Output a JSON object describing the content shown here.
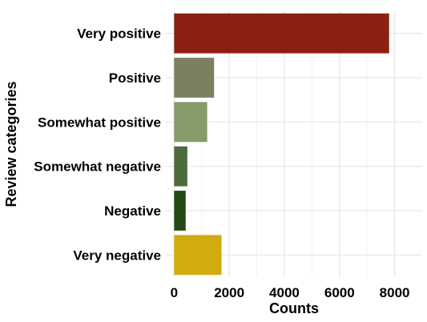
{
  "chart_data": {
    "type": "bar",
    "orientation": "horizontal",
    "categories": [
      "Very positive",
      "Positive",
      "Somewhat positive",
      "Somewhat negative",
      "Negative",
      "Very negative"
    ],
    "values": [
      7800,
      1450,
      1200,
      480,
      420,
      1720
    ],
    "colors": [
      "#8b2012",
      "#7a8062",
      "#869a6a",
      "#4e6b3c",
      "#264a16",
      "#d1ab10"
    ],
    "xlabel": "Counts",
    "ylabel": "Review categories",
    "xlim": [
      -300,
      9000
    ],
    "x_ticks": [
      0,
      2000,
      4000,
      6000,
      8000
    ],
    "grid": true,
    "legend": "none"
  }
}
